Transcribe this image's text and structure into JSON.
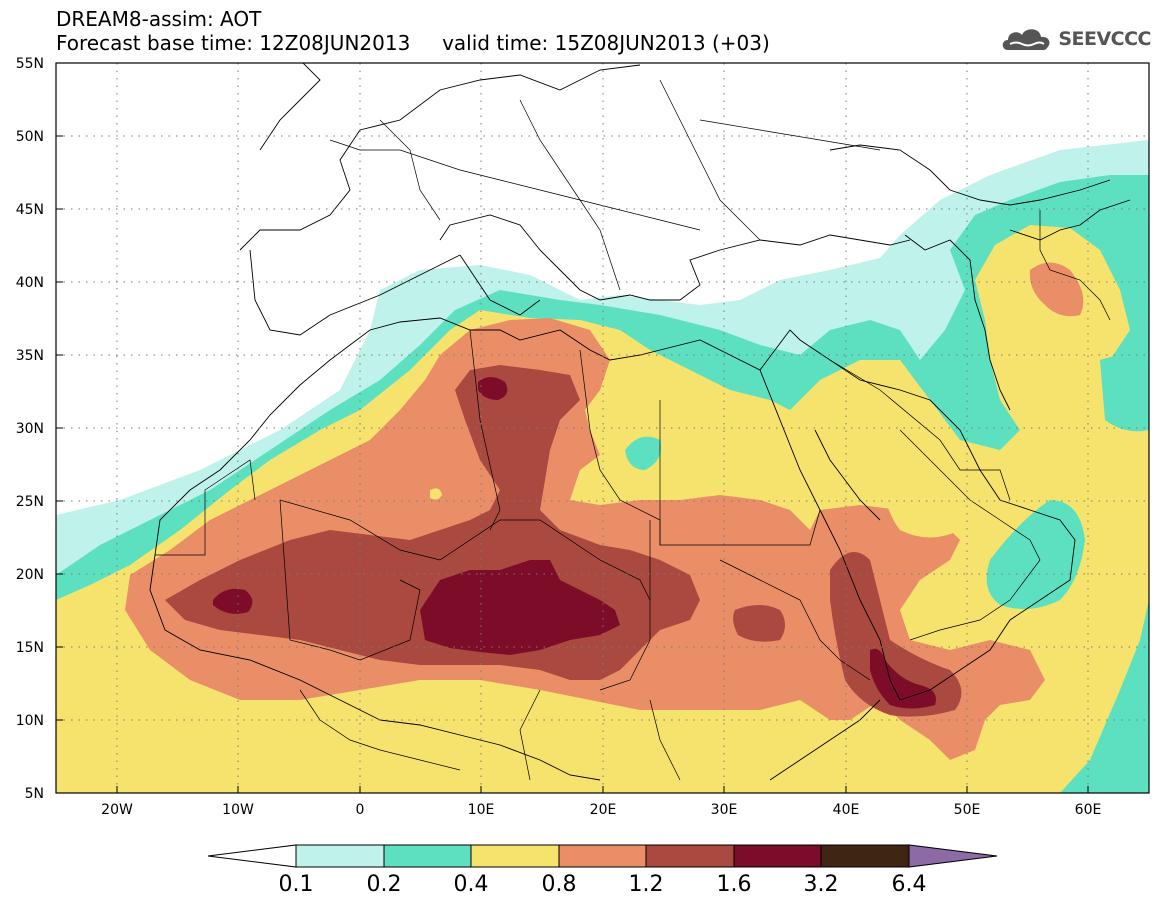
{
  "title_line1": "DREAM8-assim: AOT",
  "title_line2": "Forecast base time: 12Z08JUN2013     valid time: 15Z08JUN2013 (+03)",
  "brand": "SEEVCCC",
  "map": {
    "variable": "AOT",
    "lon_range": [
      -25,
      65
    ],
    "lat_range": [
      5,
      55
    ],
    "lon_ticks": [
      "20W",
      "10W",
      "0",
      "10E",
      "20E",
      "30E",
      "40E",
      "50E",
      "60E"
    ],
    "lat_ticks": [
      "55N",
      "50N",
      "45N",
      "40N",
      "35N",
      "30N",
      "25N",
      "20N",
      "15N",
      "10N",
      "5N"
    ],
    "grid": "dotted"
  },
  "colorbar": {
    "labels": [
      "0.1",
      "0.2",
      "0.4",
      "0.8",
      "1.2",
      "1.6",
      "3.2",
      "6.4"
    ],
    "colors": [
      "#ffffff",
      "#bff2ea",
      "#5ce0c0",
      "#f6e36e",
      "#ea8e68",
      "#a9493f",
      "#7d0c29",
      "#3e2514",
      "#8c6aa5"
    ]
  },
  "palette": {
    "c01": "#bff2ea",
    "c02": "#5ce0c0",
    "c04": "#f6e36e",
    "c08": "#ea8e68",
    "c12": "#a9493f",
    "c16": "#7d0c29",
    "c32": "#3e2514"
  }
}
